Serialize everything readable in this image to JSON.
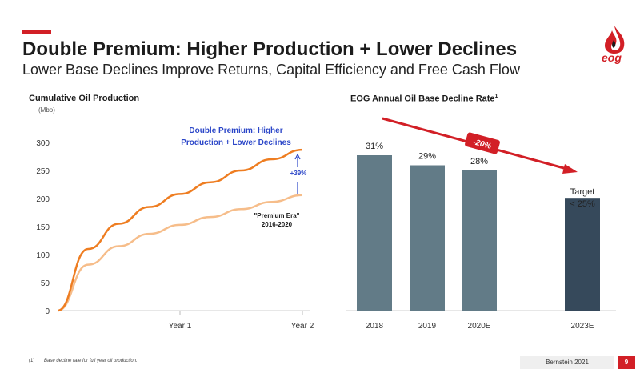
{
  "header": {
    "title": "Double Premium: Higher Production + Lower Declines",
    "subtitle": "Lower Base Declines Improve Returns, Capital Efficiency and Free Cash Flow",
    "logo_text": "eog"
  },
  "colors": {
    "accent": "#d21f26",
    "orange_dark": "#ee7d21",
    "orange_light": "#f6bd8a",
    "bar_gray": "#627b87",
    "bar_dark": "#36495b",
    "annotation_blue": "#2b46c8"
  },
  "chart_data": [
    {
      "type": "line",
      "title": "Cumulative Oil Production",
      "unit": "(Mbo)",
      "ylim": [
        0,
        300
      ],
      "yticks": [
        0,
        50,
        100,
        150,
        200,
        250,
        300
      ],
      "xticks": [
        "Year 1",
        "Year 2"
      ],
      "x": [
        0,
        0.25,
        0.5,
        0.75,
        1.0,
        1.25,
        1.5,
        1.75,
        2.0
      ],
      "series": [
        {
          "name": "Double Premium: Higher Production + Lower Declines",
          "values": [
            0,
            110,
            155,
            185,
            208,
            229,
            250,
            270,
            287
          ]
        },
        {
          "name": "\"Premium Era\" 2016-2020",
          "values": [
            0,
            82,
            115,
            137,
            153,
            167,
            181,
            194,
            206
          ]
        }
      ],
      "annotations": {
        "increase": "+39%"
      },
      "series_labels": {
        "top_line1": "Double Premium: Higher",
        "top_line2": "Production + Lower Declines",
        "bottom_line1": "\"Premium Era\"",
        "bottom_line2": "2016-2020"
      }
    },
    {
      "type": "bar",
      "title": "EOG Annual Oil Base Decline Rate",
      "title_sup": "1",
      "categories": [
        "2018",
        "2019",
        "2020E",
        "2023E"
      ],
      "values": [
        31,
        29,
        28,
        25
      ],
      "value_labels": [
        "31%",
        "29%",
        "28%",
        "Target"
      ],
      "extra_label": "< 25%",
      "ylim": [
        0,
        35
      ],
      "trend_label": "-20%"
    }
  ],
  "footer": {
    "footnote_num": "(1)",
    "footnote": "Base decline rate for full year oil production.",
    "source": "Bernstein 2021",
    "page": "9"
  }
}
